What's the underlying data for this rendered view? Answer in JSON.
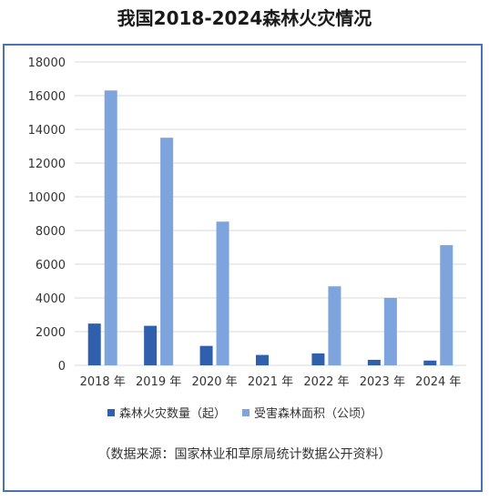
{
  "title": "我国2018-2024森林火灾情况",
  "source_note": "（数据来源：国家林业和草原局统计数据公开资料）",
  "colors": {
    "frame": "#4a72b8",
    "series1": "#2f5fad",
    "series2": "#7da4dd",
    "grid": "#d9d9d9"
  },
  "chart_data": {
    "type": "bar",
    "title": "我国2018-2024森林火灾情况",
    "categories": [
      "2018 年",
      "2019 年",
      "2020 年",
      "2021 年",
      "2022 年",
      "2023 年",
      "2024 年"
    ],
    "series": [
      {
        "name": "森林火灾数量（起）",
        "values": [
          2478,
          2345,
          1153,
          616,
          709,
          328,
          283
        ]
      },
      {
        "name": "受害森林面积（公顷）",
        "values": [
          16309,
          13505,
          8526,
          0,
          4689,
          4000,
          7131
        ]
      }
    ],
    "ylim": [
      0,
      18000
    ],
    "yticks": [
      "0",
      "2000",
      "4000",
      "6000",
      "8000",
      "10000",
      "12000",
      "14000",
      "16000",
      "18000"
    ],
    "xlabel": "",
    "ylabel": "",
    "grid": true,
    "legend_position": "bottom"
  }
}
